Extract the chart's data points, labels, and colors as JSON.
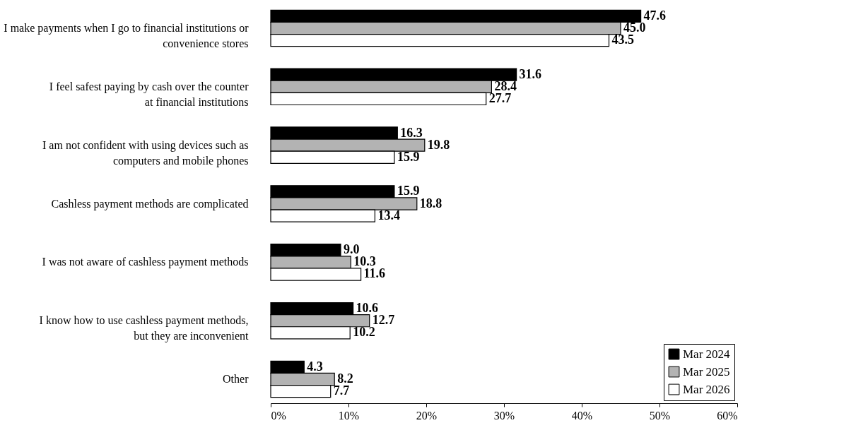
{
  "chart_data": {
    "type": "bar",
    "orientation": "horizontal",
    "categories": [
      "I make payments when I go to financial institutions or\nconvenience stores",
      "I feel safest paying by cash over the counter\nat financial institutions",
      "I am not confident with using devices such as\ncomputers and mobile phones",
      "Cashless payment methods are complicated",
      "I was not aware of cashless payment methods",
      "I know how to use cashless payment methods,\nbut they are inconvenient",
      "Other"
    ],
    "series": [
      {
        "name": "Mar 2024",
        "color": "#000000",
        "values": [
          47.6,
          31.6,
          16.3,
          15.9,
          9.0,
          10.6,
          4.3
        ],
        "value_labels": [
          "47.6",
          "31.6",
          "16.3",
          "15.9",
          "9.0",
          "10.6",
          "4.3"
        ]
      },
      {
        "name": "Mar 2025",
        "color": "#b3b3b3",
        "values": [
          45.0,
          28.4,
          19.8,
          18.8,
          10.3,
          12.7,
          8.2
        ],
        "value_labels": [
          "45.0",
          "28.4",
          "19.8",
          "18.8",
          "10.3",
          "12.7",
          "8.2"
        ]
      },
      {
        "name": "Mar 2026",
        "color": "#ffffff",
        "values": [
          43.5,
          27.7,
          15.9,
          13.4,
          11.6,
          10.2,
          7.7
        ],
        "value_labels": [
          "43.5",
          "27.7",
          "15.9",
          "13.4",
          "11.6",
          "10.2",
          "7.7"
        ]
      }
    ],
    "xlim": [
      0,
      60
    ],
    "xticks": [
      {
        "value": 0,
        "label": "0%"
      },
      {
        "value": 10,
        "label": "10%"
      },
      {
        "value": 20,
        "label": "20%"
      },
      {
        "value": 30,
        "label": "30%"
      },
      {
        "value": 40,
        "label": "40%"
      },
      {
        "value": 50,
        "label": "50%"
      },
      {
        "value": 60,
        "label": "60%"
      }
    ],
    "legend": "bottom right",
    "grid": false
  }
}
